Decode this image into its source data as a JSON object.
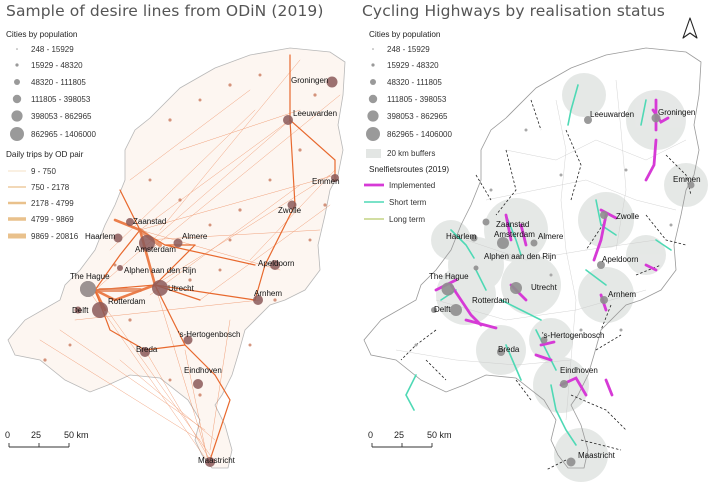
{
  "left": {
    "title": "Sample of desire lines from ODiN (2019)",
    "legend_pop_title": "Cities by population",
    "pop_classes": [
      "248 - 15929",
      "15929 - 48320",
      "48320 - 111805",
      "111805 - 398053",
      "398053 - 862965",
      "862965 - 1406000"
    ],
    "legend_trips_title": "Daily trips by OD pair",
    "trip_classes": [
      "9 - 750",
      "750 - 2178",
      "2178 - 4799",
      "4799 - 9869",
      "9869 - 20816"
    ],
    "scalebar": [
      "0",
      "25",
      "50 km"
    ]
  },
  "right": {
    "title": "Cycling Highways by realisation status",
    "legend_pop_title": "Cities by population",
    "pop_classes": [
      "248 - 15929",
      "15929 - 48320",
      "48320 - 111805",
      "111805 - 398053",
      "398053 - 862965",
      "862965 - 1406000"
    ],
    "buffer_label": "20 km buffers",
    "routes_title": "Snelfietsroutes (2019)",
    "route_classes": [
      "Implemented",
      "Short term",
      "Long term"
    ],
    "scalebar": [
      "0",
      "25",
      "50 km"
    ]
  },
  "cities": [
    "Leeuwarden",
    "Groningen",
    "Emmen",
    "Zaanstad",
    "Haarlem",
    "Almere",
    "Amsterdam",
    "Zwolle",
    "Alphen aan den Rijn",
    "The Hague",
    "Apeldoorn",
    "Utrecht",
    "Rotterdam",
    "Delft",
    "Arnhem",
    "'s-Hertogenbosch",
    "Breda",
    "Eindhoven",
    "Maastricht"
  ],
  "colors": {
    "desire_lines": "#e8692e",
    "city_fill": "#8c5a5a",
    "implemented": "#d63ad6",
    "short_term": "#4fd9b5",
    "long_term": "#b8c96a",
    "buffer": "#e3e6e4",
    "outline": "#9a9a9a"
  },
  "north_arrow": "north-arrow-icon"
}
